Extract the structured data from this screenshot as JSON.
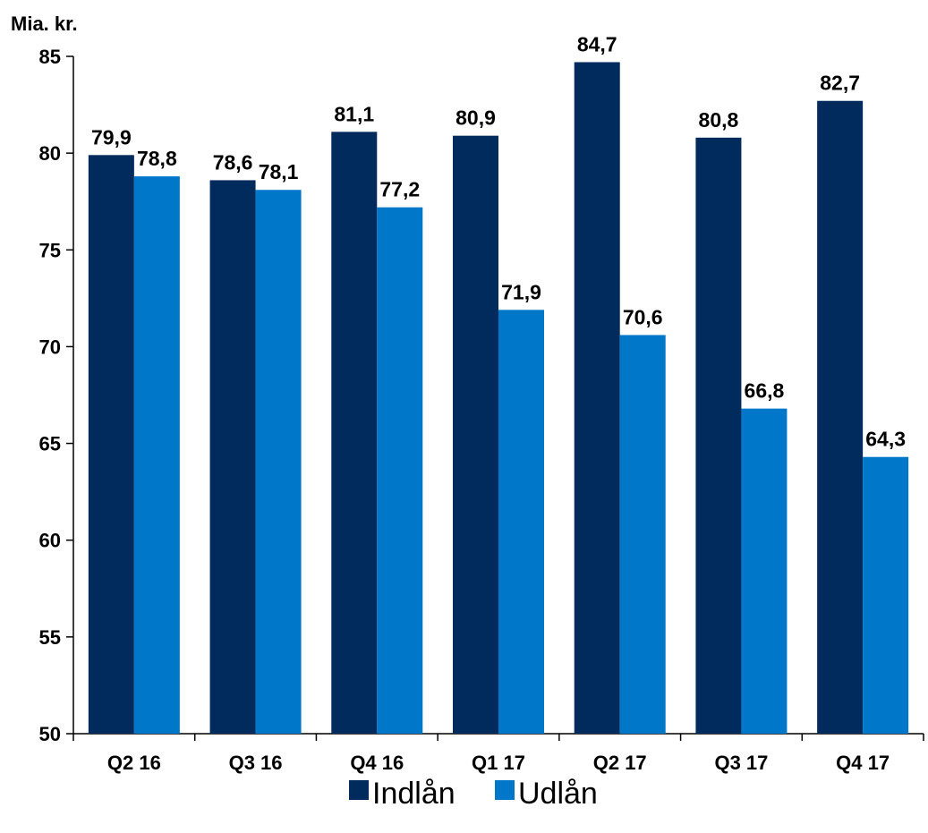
{
  "chart_data": {
    "type": "bar",
    "unit_label": "Mia. kr.",
    "categories": [
      "Q2 16",
      "Q3 16",
      "Q4 16",
      "Q1 17",
      "Q2 17",
      "Q3 17",
      "Q4 17"
    ],
    "series": [
      {
        "name": "Indlån",
        "color": "#002b5c",
        "values": [
          79.9,
          78.6,
          81.1,
          80.9,
          84.7,
          80.8,
          82.7
        ],
        "labels": [
          "79,9",
          "78,6",
          "81,1",
          "80,9",
          "84,7",
          "80,8",
          "82,7"
        ]
      },
      {
        "name": "Udlån",
        "color": "#0077c8",
        "values": [
          78.8,
          78.1,
          77.2,
          71.9,
          70.6,
          66.8,
          64.3
        ],
        "labels": [
          "78,8",
          "78,1",
          "77,2",
          "71,9",
          "70,6",
          "66,8",
          "64,3"
        ]
      }
    ],
    "ylim": [
      50,
      85
    ],
    "yticks": [
      50,
      55,
      60,
      65,
      70,
      75,
      80,
      85
    ],
    "grid": false,
    "legend": "bottom-center"
  }
}
